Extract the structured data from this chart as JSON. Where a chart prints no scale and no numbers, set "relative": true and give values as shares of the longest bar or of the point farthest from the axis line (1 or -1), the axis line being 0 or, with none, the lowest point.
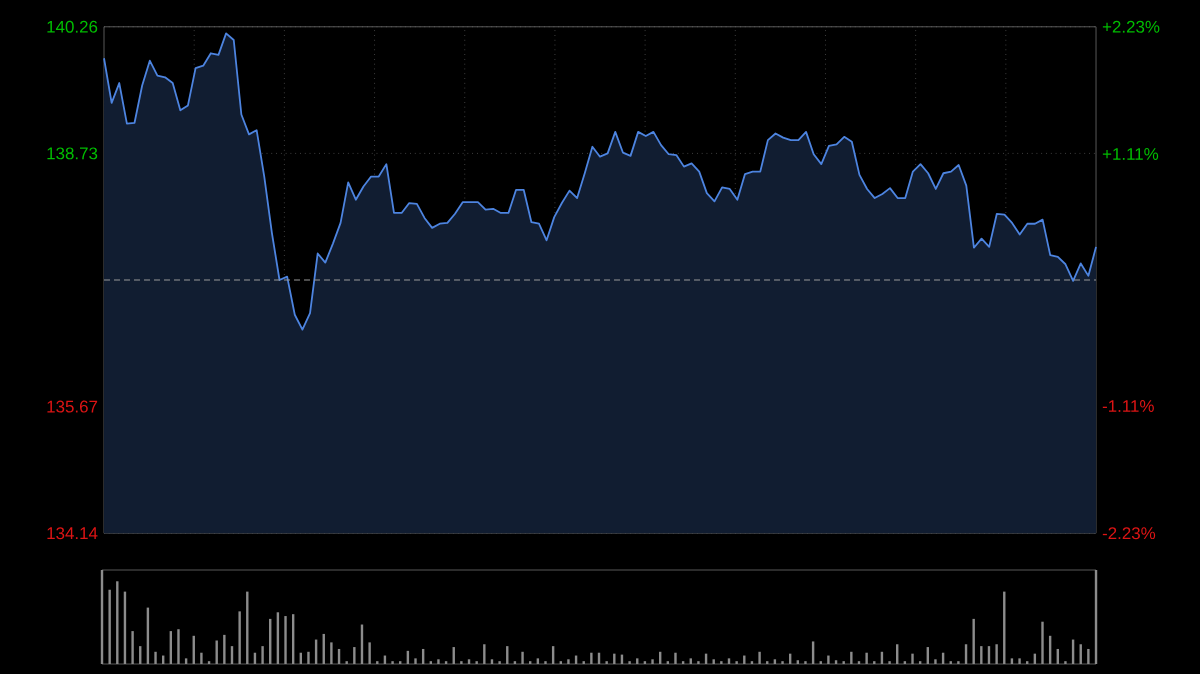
{
  "chart_data": [
    {
      "type": "area",
      "color": "#4d84e0",
      "marker": "none",
      "grid": true,
      "tick_labels": "y",
      "categories": [
        null,
        null,
        null,
        null,
        null,
        null,
        null,
        null,
        null,
        null,
        null,
        null,
        null,
        null,
        null,
        null,
        null,
        null,
        null,
        null,
        null,
        null,
        null,
        null,
        null,
        null,
        null,
        null,
        null,
        null,
        null,
        null,
        null,
        null,
        null,
        null,
        null,
        null,
        null,
        null,
        null,
        null,
        null,
        null,
        null,
        null,
        null,
        null,
        null,
        null,
        null,
        null,
        null,
        null,
        null,
        null,
        null,
        null,
        null,
        null,
        null,
        null,
        null,
        null,
        null,
        null,
        null,
        null,
        null,
        null,
        null,
        null,
        null,
        null,
        null,
        null,
        null,
        null,
        null,
        null,
        null,
        null,
        null,
        null,
        null,
        null,
        null,
        null,
        null,
        null,
        null,
        null,
        null,
        null,
        null,
        null,
        null,
        null,
        null,
        null,
        null,
        null,
        null,
        null,
        null,
        null,
        null,
        null,
        null,
        null,
        null,
        null,
        null,
        null,
        null,
        null,
        null,
        null,
        null,
        null,
        null,
        null,
        null,
        null,
        null,
        null,
        null,
        null,
        null,
        null,
        null
      ],
      "ylim": [
        134.14,
        140.26
      ],
      "yticks": [
        134.14,
        135.67,
        138.73,
        140.26
      ],
      "y2lim": [
        -2.23,
        2.23
      ],
      "y2ticks": [
        {
          "value": -2.23,
          "label": "-2.23%"
        },
        {
          "value": -1.11,
          "label": "-1.11%"
        },
        {
          "value": 1.11,
          "label": "+1.11%"
        },
        {
          "value": 2.23,
          "label": "+2.23%"
        }
      ],
      "ref_lines": [
        {
          "axis": "y",
          "value": 137.2,
          "line_style": "dashed",
          "color": "#9a9a9a"
        }
      ],
      "values": [
        139.88,
        139.34,
        139.58,
        139.09,
        139.1,
        139.55,
        139.85,
        139.67,
        139.65,
        139.58,
        139.25,
        139.31,
        139.76,
        139.79,
        139.94,
        139.92,
        140.18,
        140.1,
        139.2,
        138.96,
        139.01,
        138.45,
        137.77,
        137.2,
        137.24,
        136.78,
        136.6,
        136.8,
        137.52,
        137.41,
        137.64,
        137.89,
        138.38,
        138.17,
        138.33,
        138.45,
        138.45,
        138.6,
        138.01,
        138.01,
        138.13,
        138.12,
        137.95,
        137.83,
        137.88,
        137.89,
        138.0,
        138.14,
        138.14,
        138.14,
        138.05,
        138.06,
        138.01,
        138.01,
        138.29,
        138.29,
        137.9,
        137.88,
        137.68,
        137.96,
        138.13,
        138.28,
        138.19,
        138.49,
        138.81,
        138.69,
        138.73,
        138.99,
        138.74,
        138.7,
        138.99,
        138.94,
        138.99,
        138.83,
        138.72,
        138.71,
        138.57,
        138.61,
        138.51,
        138.25,
        138.15,
        138.32,
        138.3,
        138.17,
        138.48,
        138.51,
        138.51,
        138.89,
        138.97,
        138.92,
        138.89,
        138.89,
        138.99,
        138.72,
        138.6,
        138.82,
        138.84,
        138.93,
        138.87,
        138.47,
        138.3,
        138.19,
        138.24,
        138.31,
        138.19,
        138.19,
        138.51,
        138.6,
        138.49,
        138.3,
        138.49,
        138.51,
        138.59,
        138.34,
        137.59,
        137.7,
        137.6,
        138.0,
        137.99,
        137.89,
        137.75,
        137.88,
        137.88,
        137.93,
        137.5,
        137.48,
        137.39,
        137.19,
        137.4,
        137.25,
        137.6
      ]
    },
    {
      "type": "bar",
      "relative": true,
      "color": "#8c8c8c",
      "tick_labels": false,
      "categories": [
        null,
        null,
        null,
        null,
        null,
        null,
        null,
        null,
        null,
        null,
        null,
        null,
        null,
        null,
        null,
        null,
        null,
        null,
        null,
        null,
        null,
        null,
        null,
        null,
        null,
        null,
        null,
        null,
        null,
        null,
        null,
        null,
        null,
        null,
        null,
        null,
        null,
        null,
        null,
        null,
        null,
        null,
        null,
        null,
        null,
        null,
        null,
        null,
        null,
        null,
        null,
        null,
        null,
        null,
        null,
        null,
        null,
        null,
        null,
        null,
        null,
        null,
        null,
        null,
        null,
        null,
        null,
        null,
        null,
        null,
        null,
        null,
        null,
        null,
        null,
        null,
        null,
        null,
        null,
        null,
        null,
        null,
        null,
        null,
        null,
        null,
        null,
        null,
        null,
        null,
        null,
        null,
        null,
        null,
        null,
        null,
        null,
        null,
        null,
        null,
        null,
        null,
        null,
        null,
        null,
        null,
        null,
        null,
        null,
        null,
        null,
        null,
        null,
        null,
        null,
        null,
        null,
        null,
        null,
        null,
        null,
        null,
        null,
        null,
        null,
        null,
        null,
        null,
        null,
        null,
        null
      ],
      "values": [
        1.0,
        0.79,
        0.88,
        0.77,
        0.35,
        0.19,
        0.6,
        0.13,
        0.09,
        0.35,
        0.37,
        0.06,
        0.3,
        0.12,
        0.03,
        0.25,
        0.31,
        0.19,
        0.56,
        0.77,
        0.12,
        0.19,
        0.48,
        0.55,
        0.51,
        0.53,
        0.12,
        0.13,
        0.26,
        0.32,
        0.23,
        0.16,
        0.03,
        0.18,
        0.42,
        0.23,
        0.03,
        0.09,
        0.03,
        0.03,
        0.14,
        0.06,
        0.16,
        0.03,
        0.05,
        0.03,
        0.18,
        0.03,
        0.05,
        0.03,
        0.21,
        0.05,
        0.03,
        0.19,
        0.03,
        0.13,
        0.03,
        0.06,
        0.03,
        0.19,
        0.03,
        0.05,
        0.09,
        0.03,
        0.12,
        0.12,
        0.03,
        0.11,
        0.1,
        0.03,
        0.06,
        0.03,
        0.05,
        0.13,
        0.03,
        0.12,
        0.03,
        0.06,
        0.03,
        0.11,
        0.05,
        0.03,
        0.06,
        0.03,
        0.09,
        0.03,
        0.13,
        0.03,
        0.05,
        0.03,
        0.11,
        0.04,
        0.03,
        0.24,
        0.03,
        0.09,
        0.04,
        0.03,
        0.13,
        0.03,
        0.12,
        0.03,
        0.13,
        0.03,
        0.21,
        0.03,
        0.11,
        0.03,
        0.18,
        0.05,
        0.12,
        0.03,
        0.03,
        0.21,
        0.48,
        0.19,
        0.19,
        0.21,
        0.77,
        0.06,
        0.06,
        0.03,
        0.11,
        0.45,
        0.3,
        0.16,
        0.03,
        0.26,
        0.21,
        0.16,
        1.0
      ]
    }
  ]
}
